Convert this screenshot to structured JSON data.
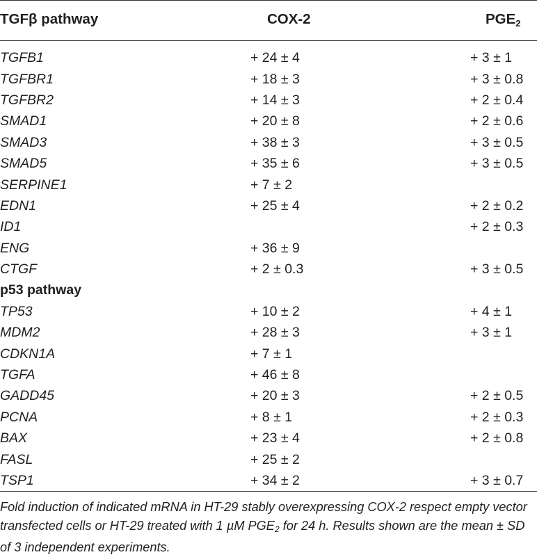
{
  "header": {
    "col1_prefix": "TGF",
    "col1_greek": "β",
    "col1_suffix": " pathway",
    "col2": "COX-2",
    "col3_base": "PGE",
    "col3_sub": "2"
  },
  "rows": [
    {
      "gene": "TGFB1",
      "cox": "+ 24 ± 4",
      "pge": "+ 3 ± 1"
    },
    {
      "gene": "TGFBR1",
      "cox": "+ 18 ± 3",
      "pge": "+ 3 ± 0.8"
    },
    {
      "gene": "TGFBR2",
      "cox": "+ 14 ± 3",
      "pge": "+ 2 ± 0.4"
    },
    {
      "gene": "SMAD1",
      "cox": "+ 20 ± 8",
      "pge": "+ 2 ± 0.6"
    },
    {
      "gene": "SMAD3",
      "cox": "+ 38 ± 3",
      "pge": "+ 3 ± 0.5"
    },
    {
      "gene": "SMAD5",
      "cox": "+ 35 ± 6",
      "pge": "+ 3 ± 0.5"
    },
    {
      "gene": "SERPINE1",
      "cox": "+ 7 ± 2",
      "pge": ""
    },
    {
      "gene": "EDN1",
      "cox": "+ 25 ± 4",
      "pge": "+ 2 ± 0.2"
    },
    {
      "gene": "ID1",
      "cox": "",
      "pge": "+ 2 ± 0.3"
    },
    {
      "gene": "ENG",
      "cox": "+ 36 ± 9",
      "pge": ""
    },
    {
      "gene": "CTGF",
      "cox": "+ 2 ± 0.3",
      "pge": "+ 3 ± 0.5"
    },
    {
      "section": "p53 pathway"
    },
    {
      "gene": "TP53",
      "cox": "+ 10 ± 2",
      "pge": "+ 4 ± 1"
    },
    {
      "gene": "MDM2",
      "cox": "+ 28 ± 3",
      "pge": "+ 3 ± 1"
    },
    {
      "gene": "CDKN1A",
      "cox": "+ 7 ± 1",
      "pge": ""
    },
    {
      "gene": "TGFA",
      "cox": "+ 46 ± 8",
      "pge": ""
    },
    {
      "gene": "GADD45",
      "cox": "+ 20 ± 3",
      "pge": "+ 2 ± 0.5"
    },
    {
      "gene": "PCNA",
      "cox": "+ 8 ± 1",
      "pge": "+ 2 ± 0.3"
    },
    {
      "gene": "BAX",
      "cox": "+ 23 ± 4",
      "pge": "+ 2 ± 0.8"
    },
    {
      "gene": "FASL",
      "cox": "+ 25 ± 2",
      "pge": ""
    },
    {
      "gene": "TSP1",
      "cox": "+ 34 ± 2",
      "pge": "+ 3 ± 0.7"
    }
  ],
  "footnote": {
    "part1": "Fold induction of indicated mRNA in HT-29 stably overexpressing COX-2 respect empty vector transfected cells or HT-29 treated with 1 µM PGE",
    "sub": "2",
    "part2": " for 24 h. Results shown are the mean ± SD of 3 independent experiments."
  }
}
